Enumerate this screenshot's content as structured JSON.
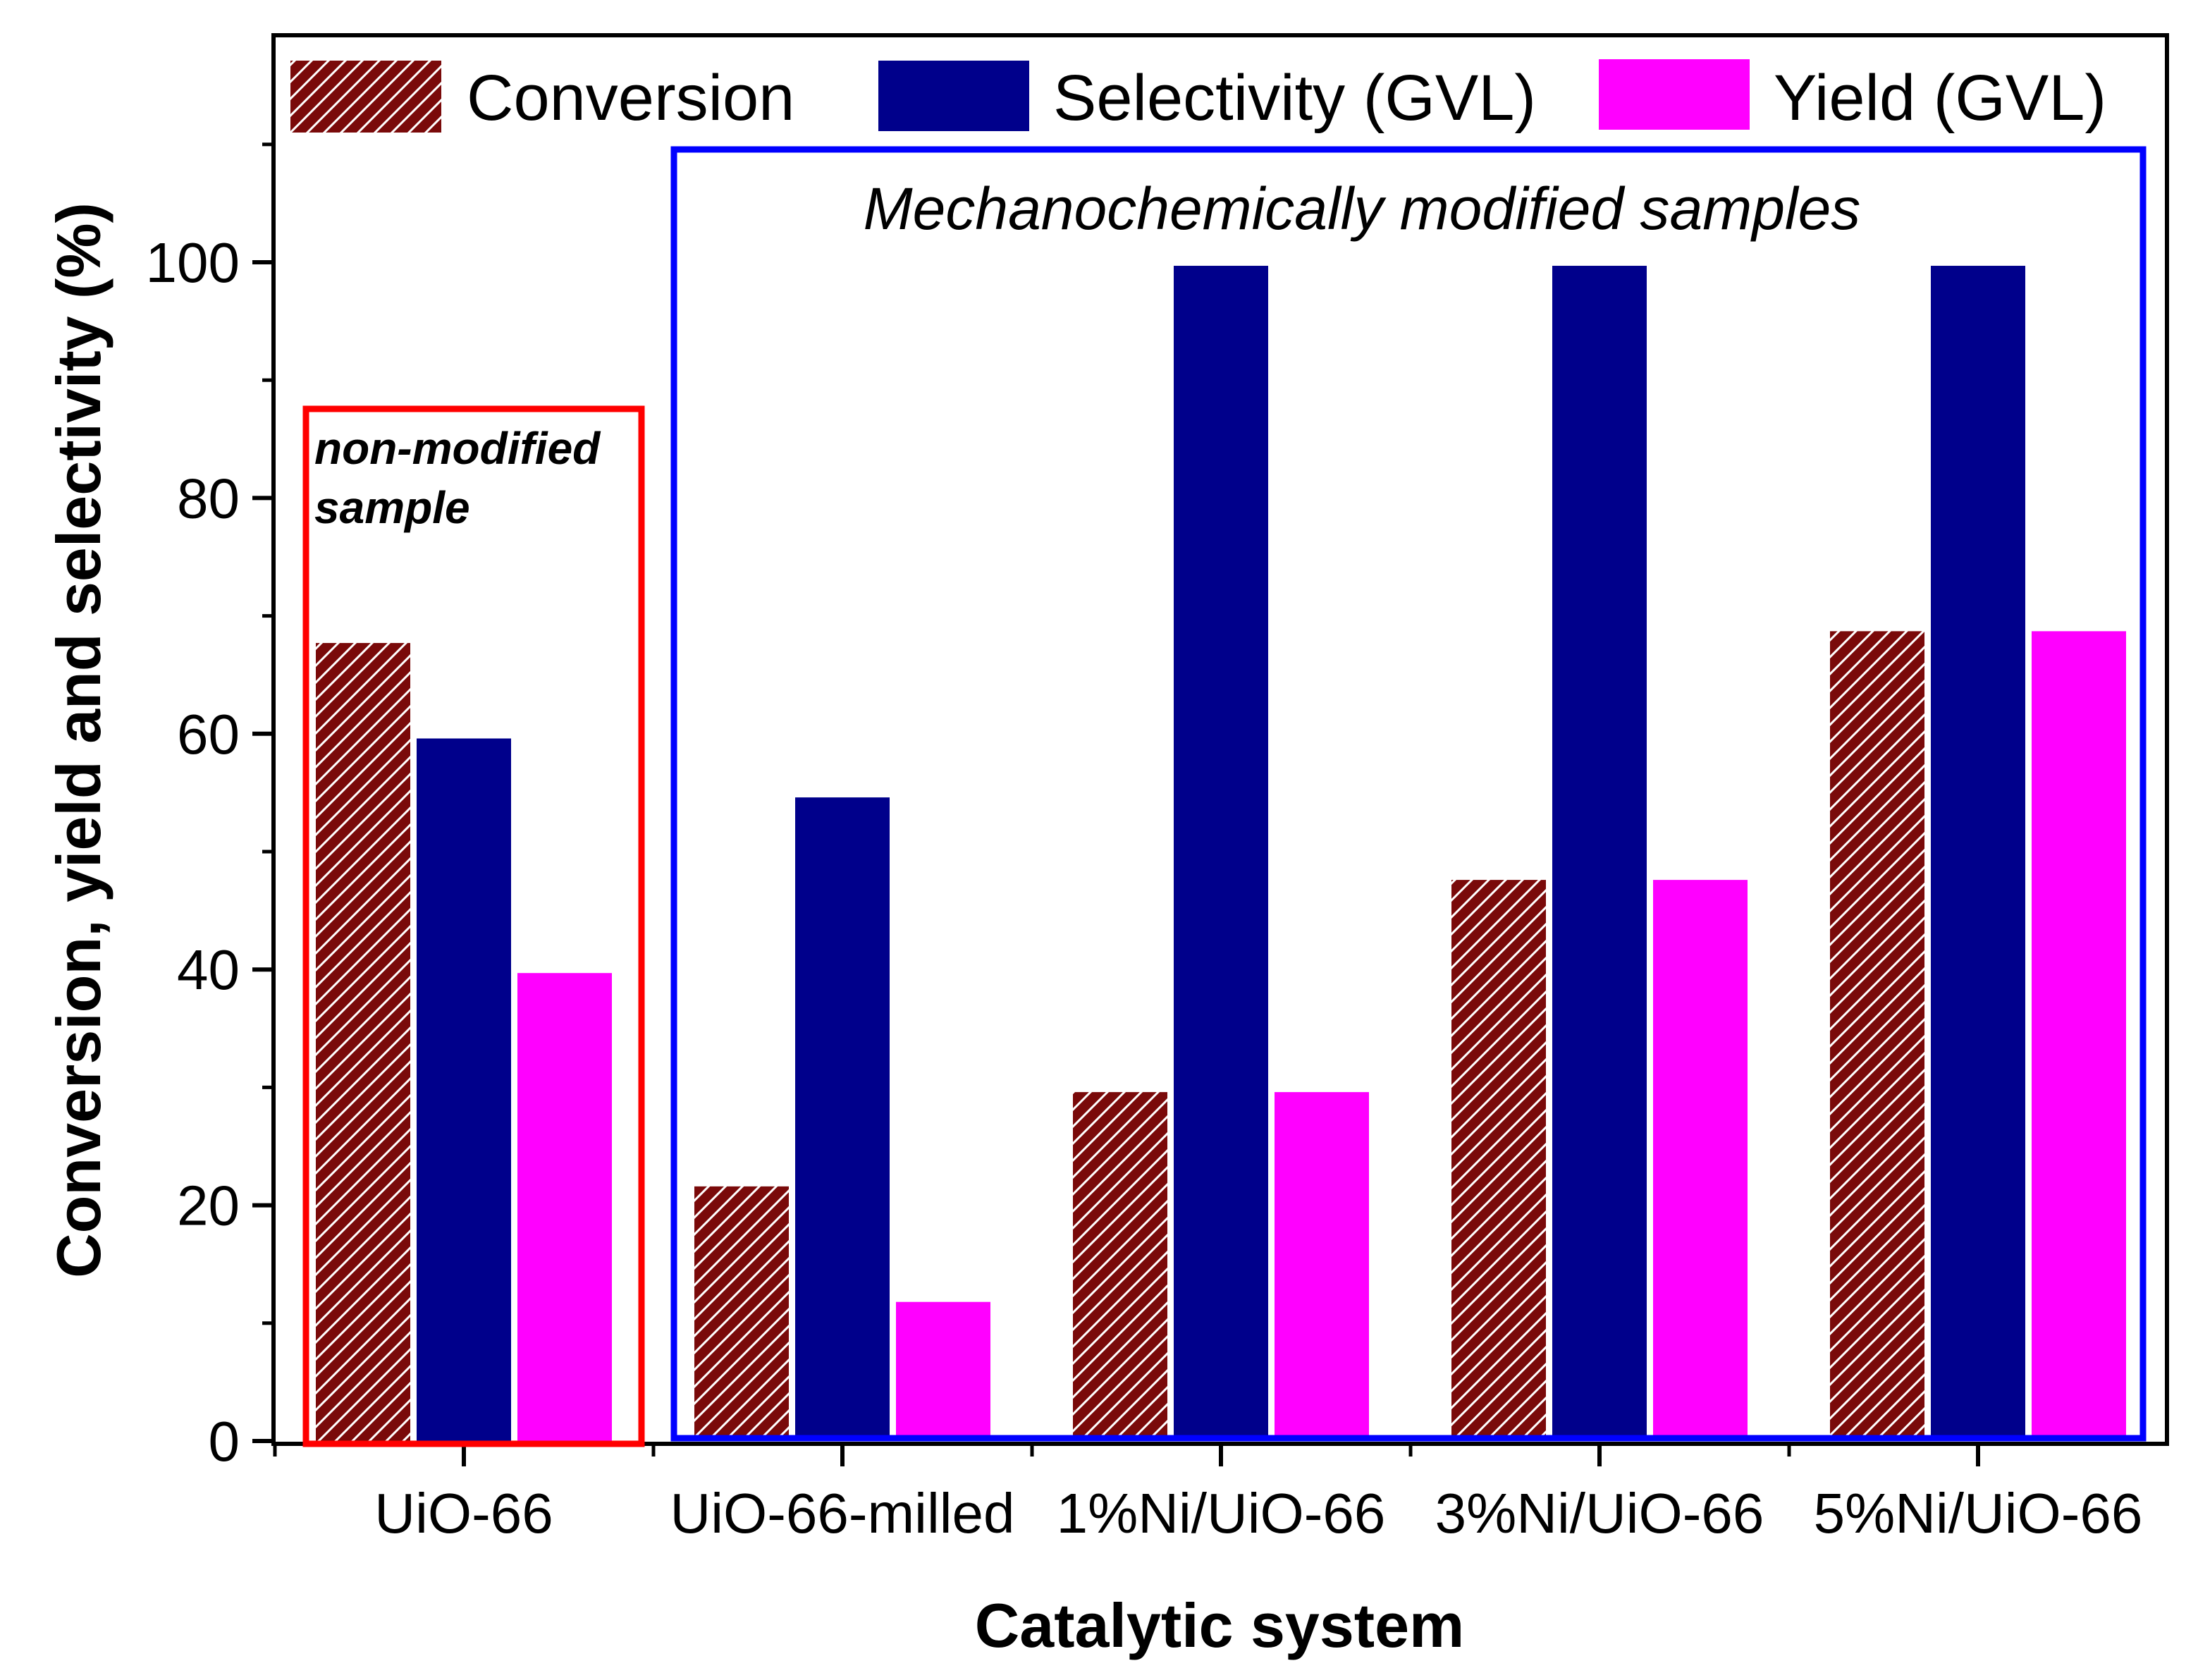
{
  "chart_data": {
    "type": "bar",
    "title": "",
    "xlabel": "Catalytic system",
    "ylabel": "Conversion, yield and selectivity (%)",
    "ylim": [
      0,
      115
    ],
    "yticks": [
      0,
      20,
      40,
      60,
      80,
      100
    ],
    "grid": false,
    "legend_position": "top",
    "categories": [
      "UiO-66",
      "UiO-66-milled",
      "1%Ni/UiO-66",
      "3%Ni/UiO-66",
      "5%Ni/UiO-66"
    ],
    "series": [
      {
        "name": "Conversion",
        "values": [
          67.7,
          21.6,
          29.6,
          47.6,
          68.7
        ],
        "color": "#7a0a0a",
        "pattern": "hatched"
      },
      {
        "name": "Selectivity (GVL)",
        "values": [
          59.6,
          54.6,
          99.7,
          99.7,
          99.7
        ],
        "color": "#00008b"
      },
      {
        "name": "Yield (GVL)",
        "values": [
          39.7,
          11.8,
          29.6,
          47.6,
          68.7
        ],
        "color": "#ff00ff"
      }
    ],
    "annotations": [
      {
        "text": "non-modified sample",
        "lines": [
          "non-modified",
          "sample"
        ],
        "box_color": "#ff0000",
        "groups": [
          "UiO-66"
        ]
      },
      {
        "text": "Mechanochemically modified samples",
        "box_color": "#0000ff",
        "groups": [
          "UiO-66-milled",
          "1%Ni/UiO-66",
          "3%Ni/UiO-66",
          "5%Ni/UiO-66"
        ]
      }
    ]
  }
}
